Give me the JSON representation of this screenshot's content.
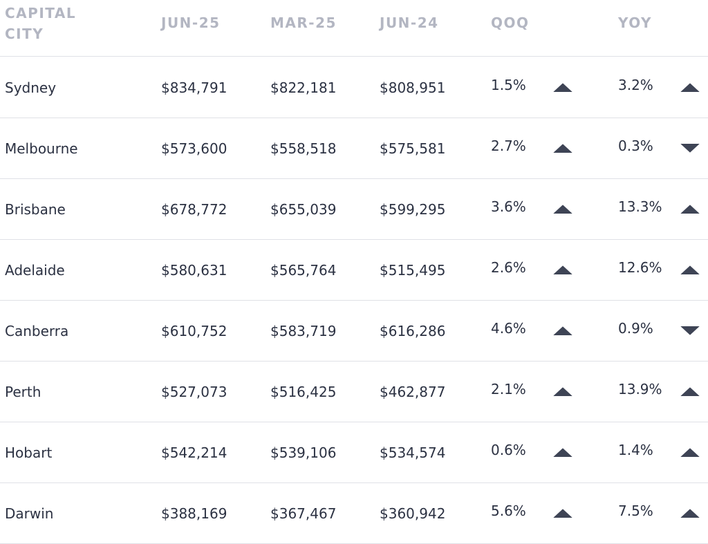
{
  "table": {
    "headers": [
      "CAPITAL CITY",
      "JUN-25",
      "MAR-25",
      "JUN-24",
      "QOQ",
      "YOY"
    ],
    "rows": [
      {
        "cells": [
          "Sydney",
          "$834,791",
          "$822,181",
          "$808,951",
          "1.5%",
          "3.2%"
        ],
        "trend": [
          "up",
          "up"
        ]
      },
      {
        "cells": [
          "Melbourne",
          "$573,600",
          "$558,518",
          "$575,581",
          "2.7%",
          "0.3%"
        ],
        "trend": [
          "up",
          "down"
        ]
      },
      {
        "cells": [
          "Brisbane",
          "$678,772",
          "$655,039",
          "$599,295",
          "3.6%",
          "13.3%"
        ],
        "trend": [
          "up",
          "up"
        ]
      },
      {
        "cells": [
          "Adelaide",
          "$580,631",
          "$565,764",
          "$515,495",
          "2.6%",
          "12.6%"
        ],
        "trend": [
          "up",
          "up"
        ]
      },
      {
        "cells": [
          "Canberra",
          "$610,752",
          "$583,719",
          "$616,286",
          "4.6%",
          "0.9%"
        ],
        "trend": [
          "up",
          "down"
        ]
      },
      {
        "cells": [
          "Perth",
          "$527,073",
          "$516,425",
          "$462,877",
          "2.1%",
          "13.9%"
        ],
        "trend": [
          "up",
          "up"
        ]
      },
      {
        "cells": [
          "Hobart",
          "$542,214",
          "$539,106",
          "$534,574",
          "0.6%",
          "1.4%"
        ],
        "trend": [
          "up",
          "up"
        ]
      },
      {
        "cells": [
          "Darwin",
          "$388,169",
          "$367,467",
          "$360,942",
          "5.6%",
          "7.5%"
        ],
        "trend": [
          "up",
          "up"
        ]
      }
    ]
  }
}
